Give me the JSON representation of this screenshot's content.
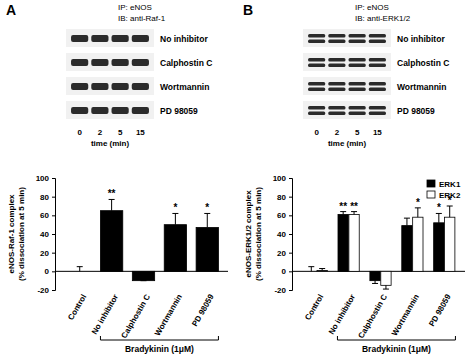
{
  "chart_data": [
    {
      "type": "bar",
      "ylabel": [
        "eNOS-Raf-1 complex",
        "(% dissociation at 5 min)"
      ],
      "categories": [
        "Control",
        "No inhibitor",
        "Calphostin C",
        "Wortmannin",
        "PD 98059"
      ],
      "values": [
        0,
        65,
        -10,
        50,
        47
      ],
      "errors": [
        5,
        12,
        0,
        12,
        15
      ],
      "significance": [
        null,
        "**",
        null,
        "*",
        "*"
      ],
      "color": "#000000",
      "ylim": [
        -20,
        100
      ],
      "yticks": [
        -20,
        0,
        20,
        40,
        60,
        80,
        100
      ],
      "annotations": [
        {
          "text": "Bradykinin (1μM)",
          "span": [
            "No inhibitor",
            "PD 98059"
          ]
        }
      ]
    },
    {
      "type": "bar",
      "ylabel": [
        "eNOS-ERK1/2 complex",
        "(% dissociation at 5 min)"
      ],
      "categories": [
        "Control",
        "No inhibitor",
        "Calphostin C",
        "Wortmannin",
        "PD 98059"
      ],
      "series": [
        {
          "name": "ERK1",
          "color": "#000000",
          "values": [
            0,
            61,
            -10,
            49,
            52
          ],
          "errors": [
            5,
            3,
            3,
            8,
            10
          ],
          "significance": [
            null,
            "**",
            null,
            null,
            "*"
          ]
        },
        {
          "name": "ERK2",
          "color": "#ffffff",
          "values": [
            1,
            61,
            -15,
            58,
            58
          ],
          "errors": [
            2,
            3,
            4,
            10,
            12
          ],
          "significance": [
            null,
            "**",
            null,
            "*",
            "*"
          ]
        }
      ],
      "legend": "upper right",
      "ylim": [
        -20,
        100
      ],
      "yticks": [
        -20,
        0,
        20,
        40,
        60,
        80,
        100
      ],
      "annotations": [
        {
          "text": "Bradykinin (1μM)",
          "span": [
            "No inhibitor",
            "PD 98059"
          ]
        }
      ]
    }
  ],
  "blots": [
    {
      "panel": "A",
      "ip": "IP: eNOS",
      "ib": "IB: anti-Raf-1",
      "rows": [
        "No inhibitor",
        "Calphostin C",
        "Wortmannin",
        "PD 98059"
      ],
      "times": [
        0,
        2,
        5,
        15
      ],
      "time_label": "time (min)"
    },
    {
      "panel": "B",
      "ip": "IP: eNOS",
      "ib": "IB: anti-ERK1/2",
      "rows": [
        "No inhibitor",
        "Calphostin C",
        "Wortmannin",
        "PD 98059"
      ],
      "times": [
        0,
        2,
        5,
        15
      ],
      "time_label": "time (min)"
    }
  ]
}
